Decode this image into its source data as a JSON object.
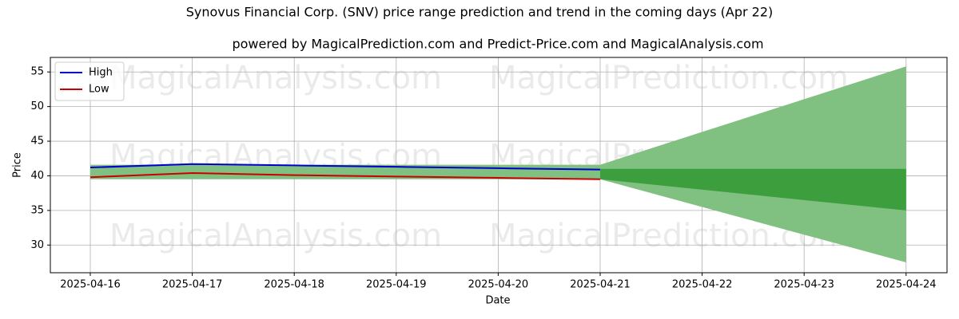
{
  "chart_data": {
    "type": "line",
    "title": "Synovus Financial Corp. (SNV) price range prediction and trend in the coming days (Apr 22)",
    "subtitle": "powered by MagicalPrediction.com and Predict-Price.com and MagicalAnalysis.com",
    "xlabel": "Date",
    "ylabel": "Price",
    "x": [
      "2025-04-16",
      "2025-04-17",
      "2025-04-18",
      "2025-04-19",
      "2025-04-20",
      "2025-04-21",
      "2025-04-22",
      "2025-04-23",
      "2025-04-24"
    ],
    "series": [
      {
        "name": "High",
        "color": "#0000cc",
        "values": [
          41.2,
          41.7,
          41.5,
          41.3,
          41.1,
          40.9,
          null,
          null,
          null
        ]
      },
      {
        "name": "Low",
        "color": "#cc0000",
        "values": [
          39.8,
          40.4,
          40.1,
          39.9,
          39.7,
          39.5,
          null,
          null,
          null
        ]
      }
    ],
    "bands": [
      {
        "color": "#80c080",
        "x": [
          "2025-04-16",
          "2025-04-21",
          "2025-04-24"
        ],
        "upper": [
          41.6,
          41.6,
          55.8
        ],
        "lower": [
          39.5,
          39.5,
          27.5
        ]
      },
      {
        "color": "#3d9e3d",
        "x": [
          "2025-04-21",
          "2025-04-24"
        ],
        "upper": [
          41.0,
          41.0
        ],
        "lower": [
          39.5,
          35.0
        ]
      }
    ],
    "ylim": [
      26,
      57.1
    ],
    "yticks": [
      30,
      35,
      40,
      45,
      50,
      55
    ],
    "grid": true,
    "legend": "upper left",
    "watermarks": [
      "MagicalAnalysis.com",
      "MagicalPrediction.com"
    ]
  }
}
